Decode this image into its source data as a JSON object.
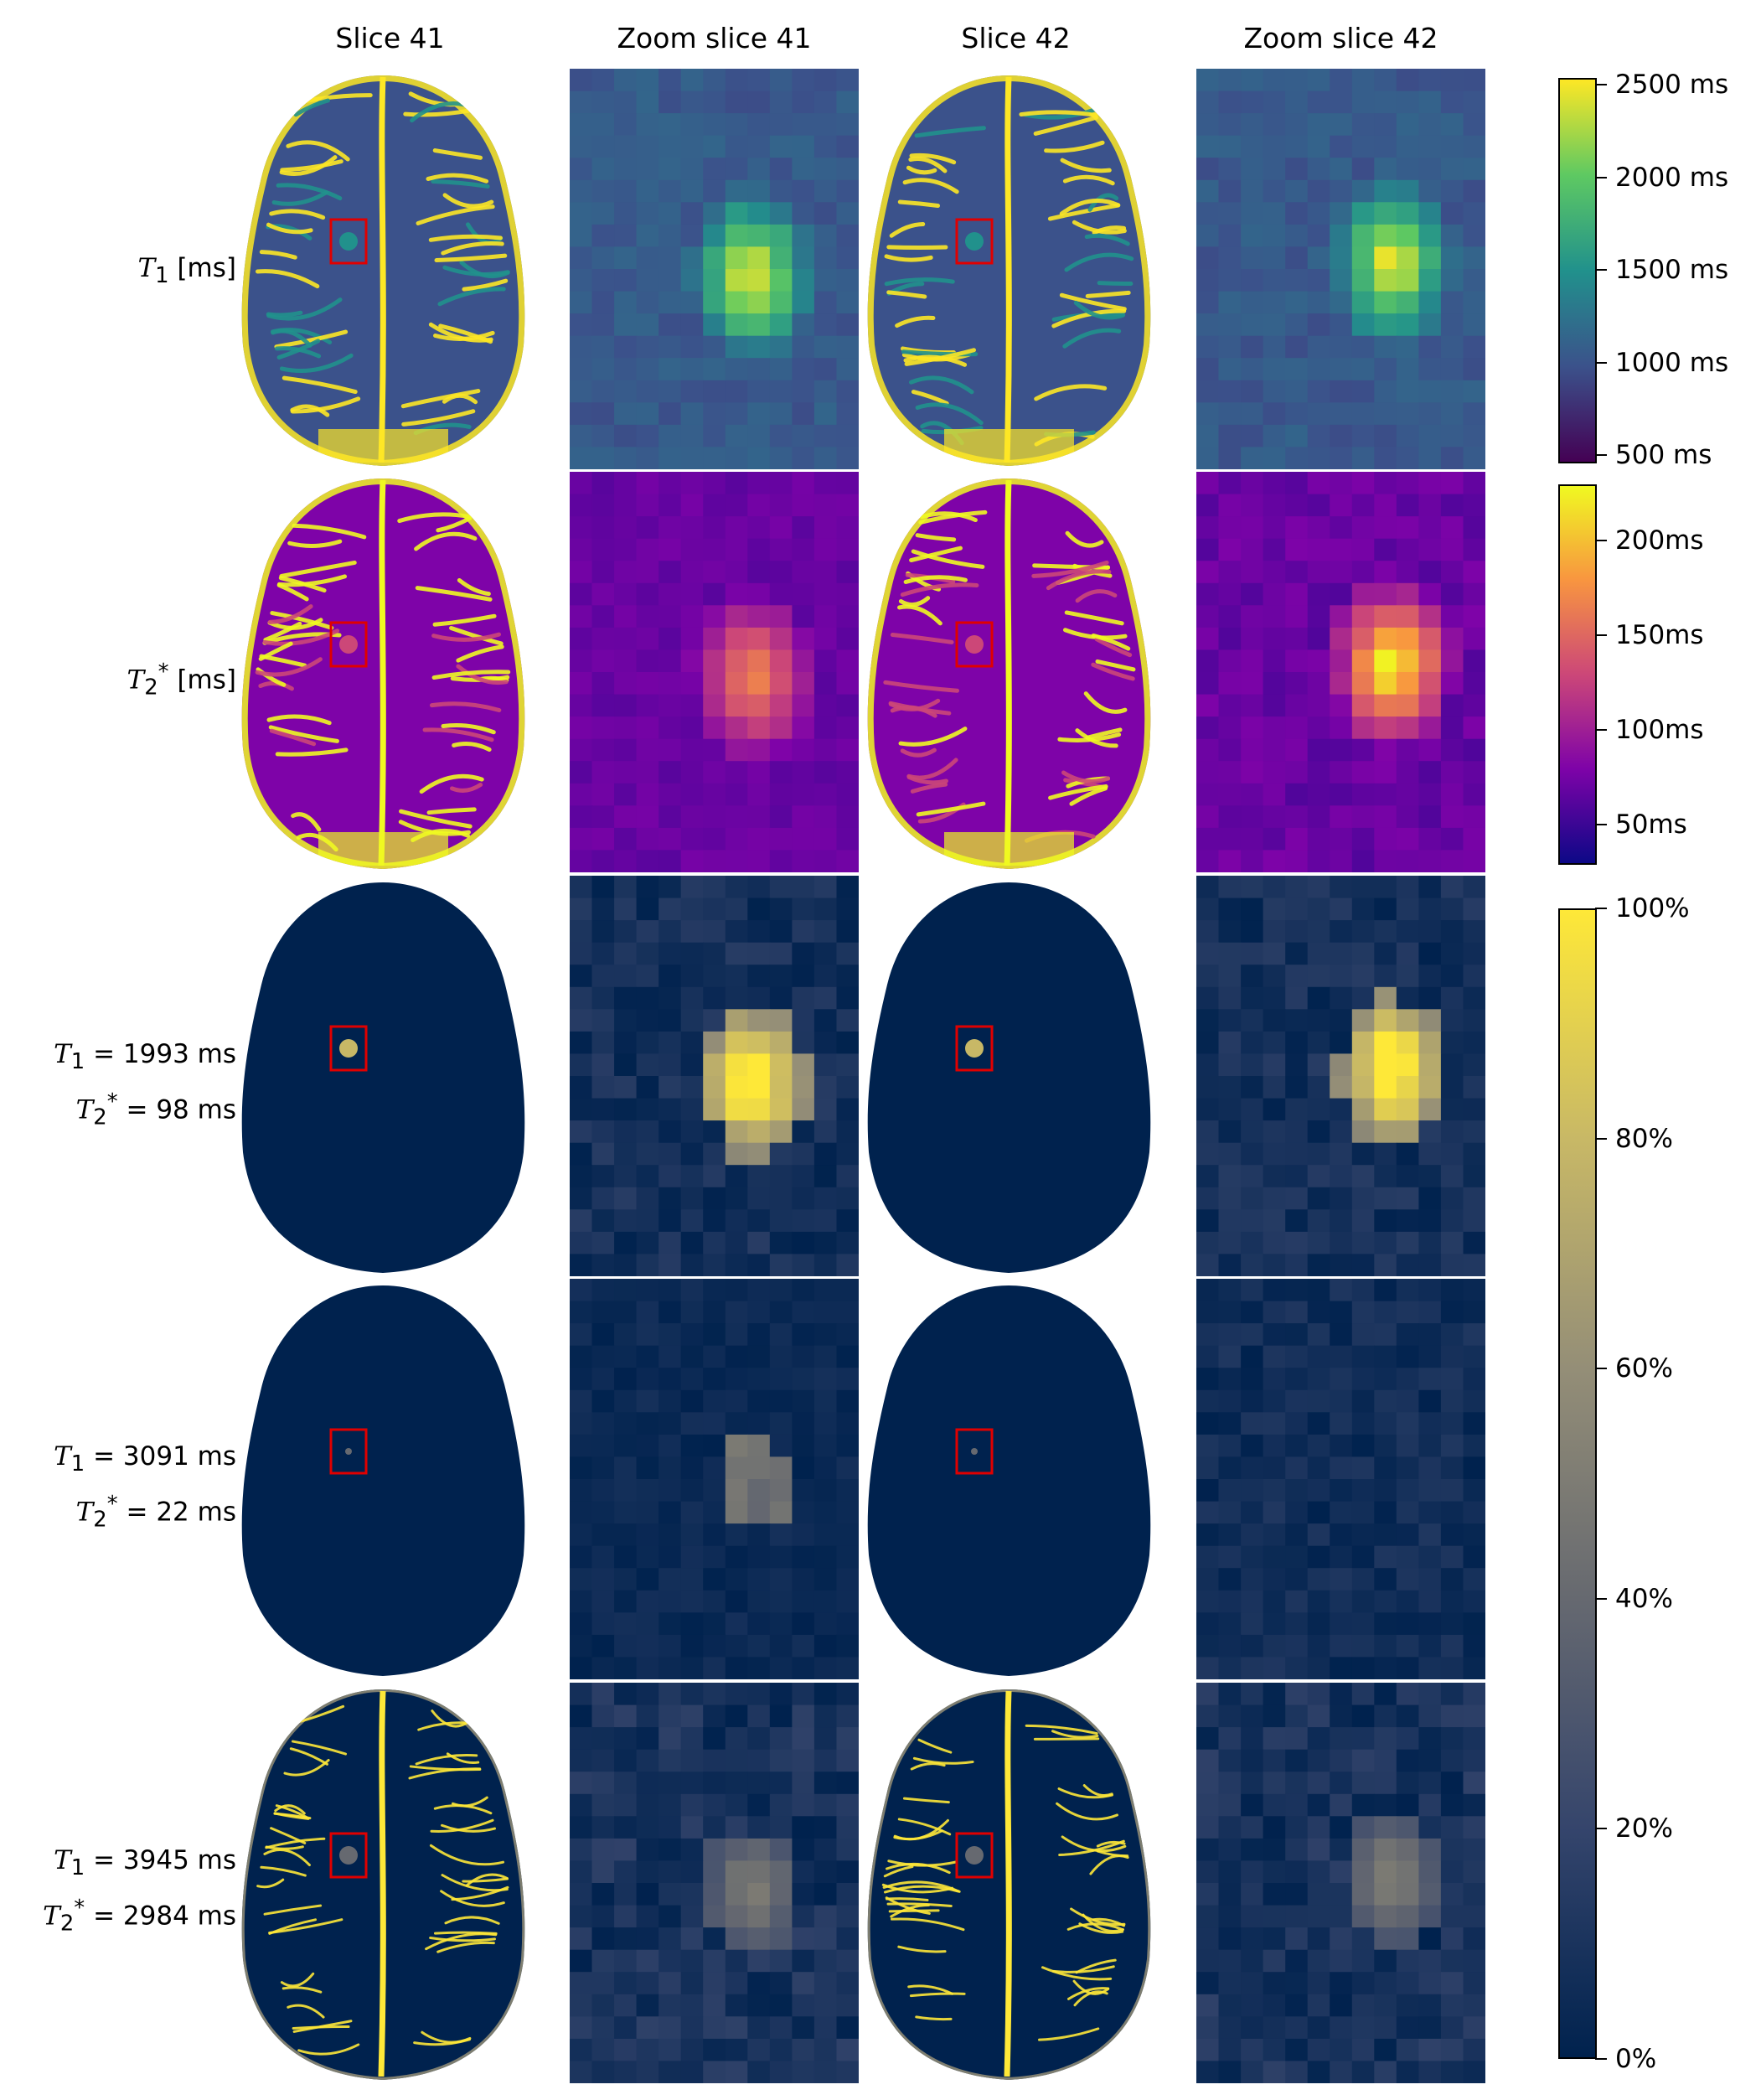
{
  "columns": [
    "Slice 41",
    "Zoom slice 41",
    "Slice 42",
    "Zoom slice 42"
  ],
  "rows": [
    {
      "label_html": "<i>T</i><sub>1</sub> [ms]",
      "lines": 1
    },
    {
      "label_html": "<i>T</i><sub>2</sub><sup>*</sup> [ms]",
      "lines": 1
    },
    {
      "label_html": "<i>T</i><sub>1</sub> = 1993 ms<br><i>T</i><sub>2</sub><sup>*</sup> = 98 ms",
      "lines": 2
    },
    {
      "label_html": "<i>T</i><sub>1</sub> = 3091 ms<br><i>T</i><sub>2</sub><sup>*</sup> = 22 ms",
      "lines": 2
    },
    {
      "label_html": "<i>T</i><sub>1</sub> = 3945 ms<br><i>T</i><sub>2</sub><sup>*</sup> = 2984 ms",
      "lines": 2
    }
  ],
  "colorbars": [
    {
      "name": "t1-colorbar",
      "colormap": "viridis",
      "ticks": [
        "2500 ms",
        "2000 ms",
        "1500 ms",
        "1000 ms",
        "500 ms"
      ]
    },
    {
      "name": "t2star-colorbar",
      "colormap": "plasma",
      "ticks": [
        "200ms",
        "150ms",
        "100ms",
        "50ms"
      ]
    },
    {
      "name": "fraction-colorbar",
      "colormap": "cividis",
      "ticks": [
        "100%",
        "80%",
        "60%",
        "40%",
        "20%",
        "0%"
      ]
    }
  ],
  "colors": {
    "highlight_box": "#e00000",
    "viridis": [
      "#440154",
      "#3b528b",
      "#21918c",
      "#5ec962",
      "#fde725"
    ],
    "plasma": [
      "#0d0887",
      "#7e03a8",
      "#cc4778",
      "#f89540",
      "#f0f921"
    ],
    "cividis": [
      "#00224e",
      "#35456c",
      "#666970",
      "#948e77",
      "#c8b866",
      "#fee838"
    ]
  }
}
